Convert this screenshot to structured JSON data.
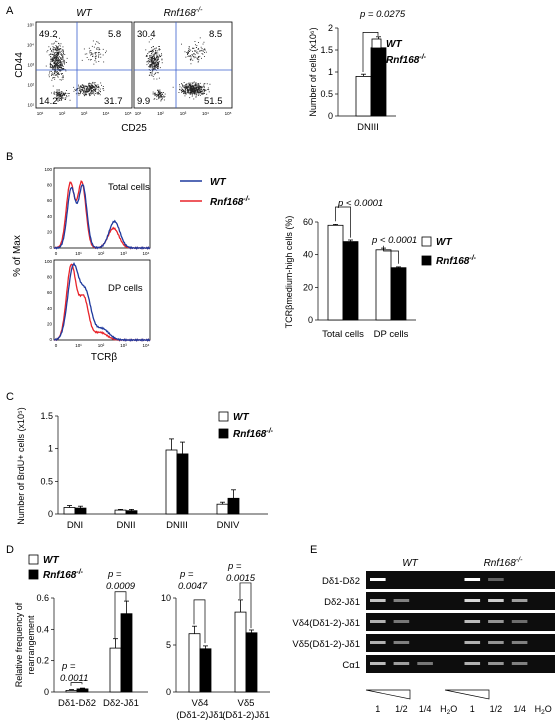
{
  "panels": {
    "A": "A",
    "B": "B",
    "C": "C",
    "D": "D",
    "E": "E"
  },
  "legend": {
    "wt": "WT",
    "ko": "Rnf168",
    "ko_sup": "-/-"
  },
  "panel_a": {
    "facs": [
      {
        "title": "WT",
        "q": [
          "49.2",
          "5.8",
          "14.2",
          "31.7"
        ]
      },
      {
        "title": "Rnf168",
        "title_sup": "-/-",
        "q": [
          "30.4",
          "8.5",
          "9.9",
          "51.5"
        ]
      }
    ],
    "ylabel": "CD44",
    "xlabel": "CD25",
    "ticks": [
      "10¹",
      "10²",
      "10³",
      "10⁴",
      "10⁵"
    ]
  },
  "panel_b": {
    "hist_labels": [
      "Total cells",
      "DP cells"
    ],
    "ylabel": "% of Max",
    "xlabel": "TCRβ",
    "colors": {
      "wt": "#1f3a9e",
      "ko": "#e8232a"
    }
  },
  "panel_e": {
    "wt_label": "WT",
    "ko_label": "Rnf168",
    "ko_sup": "-/-",
    "rows": [
      "Dδ1-Dδ2",
      "Dδ2-Jδ1",
      "Vδ4(Dδ1-2)-Jδ1",
      "Vδ5(Dδ1-2)-Jδ1",
      "Cα1"
    ],
    "lanes": [
      "1",
      "1/2",
      "1/4",
      "H2O",
      "1",
      "1/2",
      "1/4",
      "H2O"
    ]
  },
  "chart_data": [
    {
      "type": "bar",
      "panel": "A",
      "categories": [
        "DNIII"
      ],
      "series": [
        {
          "name": "WT",
          "values": [
            0.9
          ],
          "errors": [
            0.05
          ]
        },
        {
          "name": "Rnf168-/-",
          "values": [
            1.55
          ],
          "errors": [
            0.25
          ]
        }
      ],
      "ylabel": "Number of cells (x10⁶)",
      "ylim": [
        0,
        2
      ],
      "yticks": [
        "0",
        "0.5",
        "1",
        "1.5",
        "2"
      ],
      "annotation": "p = 0.0275"
    },
    {
      "type": "bar",
      "panel": "B",
      "categories": [
        "Total cells",
        "DP cells"
      ],
      "series": [
        {
          "name": "WT",
          "values": [
            58,
            43
          ],
          "errors": [
            0.5,
            1
          ]
        },
        {
          "name": "Rnf168-/-",
          "values": [
            48,
            32
          ],
          "errors": [
            1,
            0.5
          ]
        }
      ],
      "ylabel": "TCRβmedium-high cells (%)",
      "ylim": [
        0,
        60
      ],
      "yticks": [
        "0",
        "20",
        "40",
        "60"
      ],
      "annotations": [
        "p < 0.0001",
        "p < 0.0001"
      ]
    },
    {
      "type": "bar",
      "panel": "C",
      "categories": [
        "DNI",
        "DNII",
        "DNIII",
        "DNIV"
      ],
      "series": [
        {
          "name": "WT",
          "values": [
            0.1,
            0.06,
            0.98,
            0.15
          ],
          "errors": [
            0.03,
            0.01,
            0.17,
            0.03
          ]
        },
        {
          "name": "Rnf168-/-",
          "values": [
            0.09,
            0.05,
            0.92,
            0.24
          ],
          "errors": [
            0.03,
            0.02,
            0.18,
            0.13
          ]
        }
      ],
      "ylabel": "Number of BrdU+ cells (x10⁵)",
      "ylim": [
        0,
        1.5
      ],
      "yticks": [
        "0",
        "0.5",
        "1",
        "1.5"
      ]
    },
    {
      "type": "bar",
      "panel": "D-left",
      "categories": [
        "Dδ1-Dδ2",
        "Dδ2-Jδ1"
      ],
      "series": [
        {
          "name": "WT",
          "values": [
            0.01,
            0.28
          ],
          "errors": [
            0.005,
            0.06
          ]
        },
        {
          "name": "Rnf168-/-",
          "values": [
            0.02,
            0.5
          ],
          "errors": [
            0.005,
            0.08
          ]
        }
      ],
      "ylabel": "Relative frequency of rearrangement",
      "ylim": [
        0,
        0.6
      ],
      "yticks": [
        "0",
        "0.2",
        "0.4",
        "0.6"
      ],
      "annotations": [
        "p = 0.0011",
        "p = 0.0009"
      ]
    },
    {
      "type": "bar",
      "panel": "D-right",
      "categories": [
        "Vδ4 (Dδ1-2)Jδ1",
        "Vδ5 (Dδ1-2)Jδ1"
      ],
      "series": [
        {
          "name": "WT",
          "values": [
            6.2,
            8.5
          ],
          "errors": [
            0.8,
            1.3
          ]
        },
        {
          "name": "Rnf168-/-",
          "values": [
            4.6,
            6.3
          ],
          "errors": [
            0.3,
            0.3
          ]
        }
      ],
      "ylim": [
        0,
        10
      ],
      "yticks": [
        "0",
        "5",
        "10"
      ],
      "annotations": [
        "p = 0.0047",
        "p = 0.0015"
      ]
    }
  ]
}
